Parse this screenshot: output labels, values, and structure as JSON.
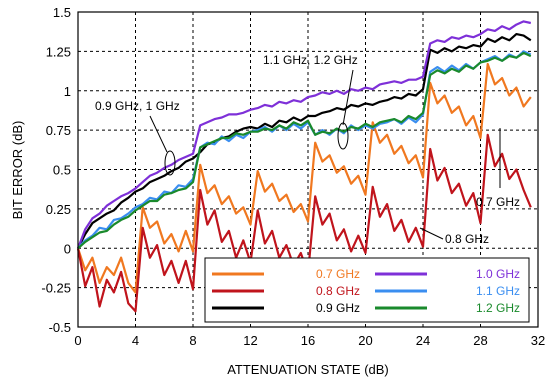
{
  "chart_data": {
    "type": "line",
    "xlabel": "ATTENUATION STATE (dB)",
    "ylabel": "BIT ERROR (dB)",
    "xlim": [
      0,
      32
    ],
    "ylim": [
      -0.5,
      1.5
    ],
    "xticks": [
      "0",
      "4",
      "8",
      "12",
      "16",
      "20",
      "24",
      "28",
      "32"
    ],
    "yticks": [
      "-0.5",
      "-0.25",
      "0",
      "0.25",
      "0.5",
      "0.75",
      "1",
      "1.25",
      "1.5"
    ],
    "grid": true,
    "legend_position": "bottom-right",
    "x": [
      0,
      0.5,
      1,
      1.5,
      2,
      2.5,
      3,
      3.5,
      4,
      4.5,
      5,
      5.5,
      6,
      6.5,
      7,
      7.5,
      8,
      8.5,
      9,
      9.5,
      10,
      10.5,
      11,
      11.5,
      12,
      12.5,
      13,
      13.5,
      14,
      14.5,
      15,
      15.5,
      16,
      16.5,
      17,
      17.5,
      18,
      18.5,
      19,
      19.5,
      20,
      20.5,
      21,
      21.5,
      22,
      22.5,
      23,
      23.5,
      24,
      24.5,
      25,
      25.5,
      26,
      26.5,
      27,
      27.5,
      28,
      28.5,
      29,
      29.5,
      30,
      30.5,
      31,
      31.5
    ],
    "series": [
      {
        "name": "0.7 GHz",
        "color": "#f07820",
        "values": [
          0,
          -0.14,
          -0.06,
          -0.22,
          -0.12,
          -0.17,
          -0.06,
          -0.22,
          -0.28,
          0.26,
          0.13,
          0.17,
          0.03,
          0.09,
          -0.02,
          0.11,
          -0.02,
          0.53,
          0.35,
          0.4,
          0.28,
          0.33,
          0.22,
          0.26,
          0.15,
          0.49,
          0.36,
          0.41,
          0.3,
          0.34,
          0.23,
          0.28,
          0.17,
          0.67,
          0.55,
          0.59,
          0.48,
          0.52,
          0.41,
          0.46,
          0.34,
          0.8,
          0.67,
          0.72,
          0.6,
          0.65,
          0.54,
          0.59,
          0.45,
          1.05,
          0.92,
          0.97,
          0.86,
          0.9,
          0.78,
          0.84,
          0.7,
          1.17,
          1.04,
          1.08,
          0.97,
          1.02,
          0.9,
          0.96
        ]
      },
      {
        "name": "0.8 GHz",
        "color": "#c0141c",
        "values": [
          0,
          -0.24,
          -0.12,
          -0.37,
          -0.2,
          -0.28,
          -0.15,
          -0.35,
          -0.4,
          0.13,
          -0.06,
          0.02,
          -0.17,
          -0.08,
          -0.22,
          -0.08,
          -0.26,
          0.37,
          0.15,
          0.24,
          0.04,
          0.11,
          -0.06,
          0.05,
          -0.09,
          0.24,
          0.03,
          0.11,
          -0.06,
          0.02,
          -0.11,
          -0.03,
          -0.16,
          0.33,
          0.15,
          0.22,
          0.05,
          0.12,
          -0.02,
          0.08,
          -0.03,
          0.39,
          0.2,
          0.28,
          0.11,
          0.18,
          0.04,
          0.13,
          0.01,
          0.63,
          0.43,
          0.51,
          0.35,
          0.41,
          0.27,
          0.35,
          0.16,
          0.72,
          0.52,
          0.6,
          0.44,
          0.5,
          0.37,
          0.26
        ]
      },
      {
        "name": "0.9 GHz",
        "color": "#000000",
        "values": [
          0,
          0.09,
          0.16,
          0.19,
          0.22,
          0.24,
          0.29,
          0.32,
          0.36,
          0.38,
          0.42,
          0.44,
          0.46,
          0.49,
          0.51,
          0.55,
          0.57,
          0.61,
          0.66,
          0.67,
          0.7,
          0.71,
          0.74,
          0.76,
          0.77,
          0.76,
          0.79,
          0.77,
          0.81,
          0.8,
          0.83,
          0.81,
          0.84,
          0.84,
          0.86,
          0.87,
          0.89,
          0.88,
          0.91,
          0.9,
          0.92,
          0.91,
          0.93,
          0.94,
          0.96,
          0.95,
          0.98,
          0.97,
          1.01,
          1.26,
          1.24,
          1.27,
          1.25,
          1.28,
          1.27,
          1.29,
          1.28,
          1.33,
          1.31,
          1.34,
          1.32,
          1.36,
          1.35,
          1.32
        ]
      },
      {
        "name": "1.0 GHz",
        "color": "#7e30d8",
        "values": [
          0,
          0.12,
          0.19,
          0.22,
          0.27,
          0.3,
          0.33,
          0.35,
          0.38,
          0.42,
          0.46,
          0.48,
          0.51,
          0.53,
          0.56,
          0.58,
          0.6,
          0.78,
          0.8,
          0.82,
          0.83,
          0.85,
          0.85,
          0.86,
          0.88,
          0.89,
          0.91,
          0.9,
          0.93,
          0.92,
          0.94,
          0.93,
          0.96,
          0.97,
          0.99,
          0.98,
          1.0,
          0.98,
          1.01,
          1.0,
          1.02,
          1.01,
          1.04,
          1.05,
          1.06,
          1.05,
          1.07,
          1.07,
          1.09,
          1.3,
          1.32,
          1.31,
          1.34,
          1.33,
          1.35,
          1.34,
          1.36,
          1.39,
          1.38,
          1.41,
          1.39,
          1.42,
          1.44,
          1.43
        ]
      },
      {
        "name": "1.1 GHz",
        "color": "#3a8ef0",
        "values": [
          0,
          0.05,
          0.08,
          0.13,
          0.12,
          0.18,
          0.19,
          0.22,
          0.26,
          0.28,
          0.32,
          0.31,
          0.36,
          0.35,
          0.4,
          0.39,
          0.44,
          0.64,
          0.67,
          0.66,
          0.71,
          0.68,
          0.72,
          0.7,
          0.74,
          0.75,
          0.77,
          0.74,
          0.78,
          0.75,
          0.79,
          0.76,
          0.8,
          0.72,
          0.75,
          0.72,
          0.76,
          0.73,
          0.78,
          0.75,
          0.78,
          0.76,
          0.79,
          0.8,
          0.82,
          0.79,
          0.83,
          0.8,
          0.85,
          1.12,
          1.15,
          1.12,
          1.16,
          1.13,
          1.17,
          1.14,
          1.18,
          1.2,
          1.22,
          1.19,
          1.23,
          1.21,
          1.25,
          1.23
        ]
      },
      {
        "name": "1.2 GHz",
        "color": "#1a8a2c",
        "values": [
          0,
          0.04,
          0.07,
          0.1,
          0.11,
          0.15,
          0.18,
          0.2,
          0.24,
          0.27,
          0.3,
          0.3,
          0.34,
          0.35,
          0.37,
          0.38,
          0.42,
          0.64,
          0.66,
          0.68,
          0.7,
          0.7,
          0.73,
          0.72,
          0.74,
          0.74,
          0.76,
          0.75,
          0.78,
          0.76,
          0.8,
          0.78,
          0.81,
          0.72,
          0.74,
          0.73,
          0.76,
          0.74,
          0.77,
          0.76,
          0.79,
          0.77,
          0.8,
          0.81,
          0.82,
          0.8,
          0.84,
          0.82,
          0.86,
          1.1,
          1.13,
          1.11,
          1.14,
          1.12,
          1.16,
          1.14,
          1.18,
          1.19,
          1.21,
          1.19,
          1.22,
          1.21,
          1.24,
          1.22
        ]
      }
    ],
    "annotations": [
      {
        "text": "1.1 GHz, 1.2 GHz"
      },
      {
        "text": "0.9 GHz, 1 GHz"
      },
      {
        "text": "0.7 GHz"
      },
      {
        "text": "0.8 GHz"
      }
    ]
  }
}
